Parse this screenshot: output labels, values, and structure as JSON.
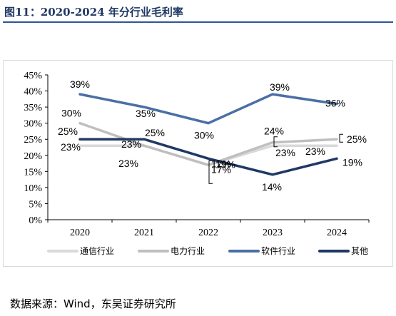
{
  "header": {
    "title": "图11：2020-2024 年分行业毛利率"
  },
  "footer": {
    "source": "数据来源：Wind，东吴证券研究所"
  },
  "chart_data": {
    "type": "line",
    "title": "",
    "xlabel": "",
    "ylabel": "",
    "x": [
      "2020",
      "2021",
      "2022",
      "2023",
      "2024"
    ],
    "ylim": [
      0,
      45
    ],
    "yticks": [
      "0%",
      "5%",
      "10%",
      "15%",
      "20%",
      "25%",
      "30%",
      "35%",
      "40%",
      "45%"
    ],
    "grid": false,
    "legend_position": "bottom",
    "series": [
      {
        "name": "通信行业",
        "color": "#d9d9d9",
        "values": [
          23,
          23,
          17,
          23,
          23
        ],
        "labels": [
          "23%",
          "23%",
          "17%",
          "23%",
          "23%"
        ]
      },
      {
        "name": "电力行业",
        "color": "#bfbfbf",
        "values": [
          30,
          23,
          17,
          24,
          25
        ],
        "labels": [
          "30%",
          "23%",
          "17%",
          "24%",
          "25%"
        ]
      },
      {
        "name": "软件行业",
        "color": "#4a6fa5",
        "values": [
          39,
          35,
          30,
          39,
          36
        ],
        "labels": [
          "39%",
          "35%",
          "30%",
          "39%",
          "36%"
        ]
      },
      {
        "name": "其他",
        "color": "#1f3864",
        "values": [
          25,
          25,
          19,
          14,
          19
        ],
        "labels": [
          "25%",
          "25%",
          "19%",
          "14%",
          "19%"
        ]
      }
    ]
  }
}
